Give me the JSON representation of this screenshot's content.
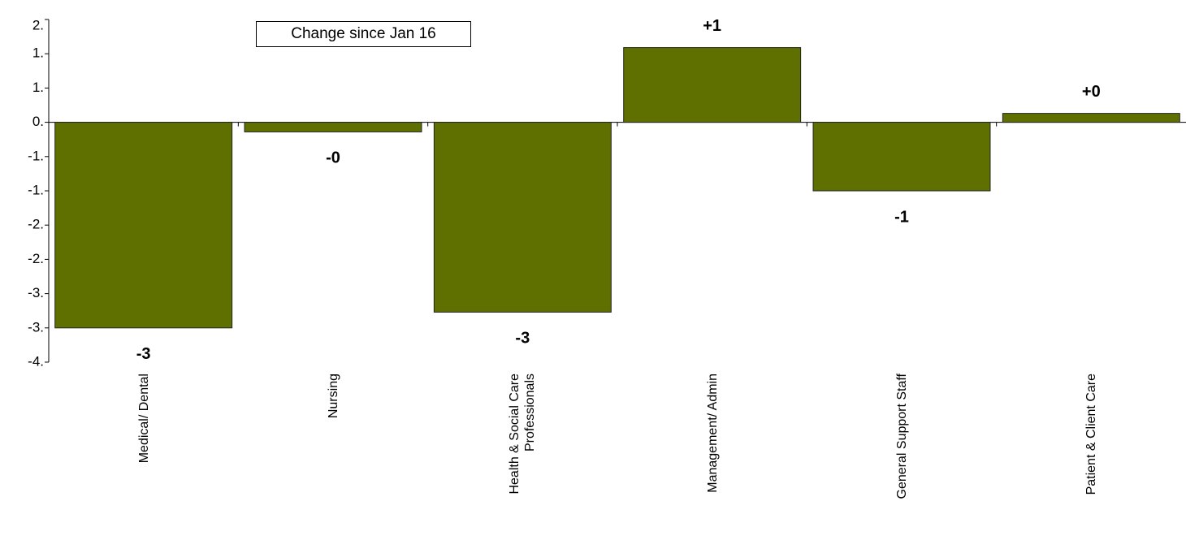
{
  "chart_data": {
    "type": "bar",
    "annotation": "Change since Jan 16",
    "categories": [
      "Medical/ Dental",
      "Nursing",
      "Health & Social Care Professionals",
      "Management/ Admin",
      "General Support Staff",
      "Patient & Client Care"
    ],
    "values": [
      -3.0,
      -0.14,
      -2.77,
      1.09,
      -1.0,
      0.13
    ],
    "value_labels": [
      "-3",
      "-0",
      "-3",
      "+1",
      "-1",
      "+0"
    ],
    "color": "#5f7000",
    "ylim": [
      -3.5,
      1.5
    ],
    "yticks": [
      {
        "value": 1.5,
        "label": "2."
      },
      {
        "value": 1.0,
        "label": "1."
      },
      {
        "value": 0.5,
        "label": "1."
      },
      {
        "value": 0,
        "label": "0."
      },
      {
        "value": -0.5,
        "label": "-1."
      },
      {
        "value": -1.0,
        "label": "-1."
      },
      {
        "value": -1.5,
        "label": "-2."
      },
      {
        "value": -2.0,
        "label": "-2."
      },
      {
        "value": -2.5,
        "label": "-3."
      },
      {
        "value": -3.0,
        "label": "-3."
      },
      {
        "value": -3.5,
        "label": "-4."
      }
    ]
  }
}
